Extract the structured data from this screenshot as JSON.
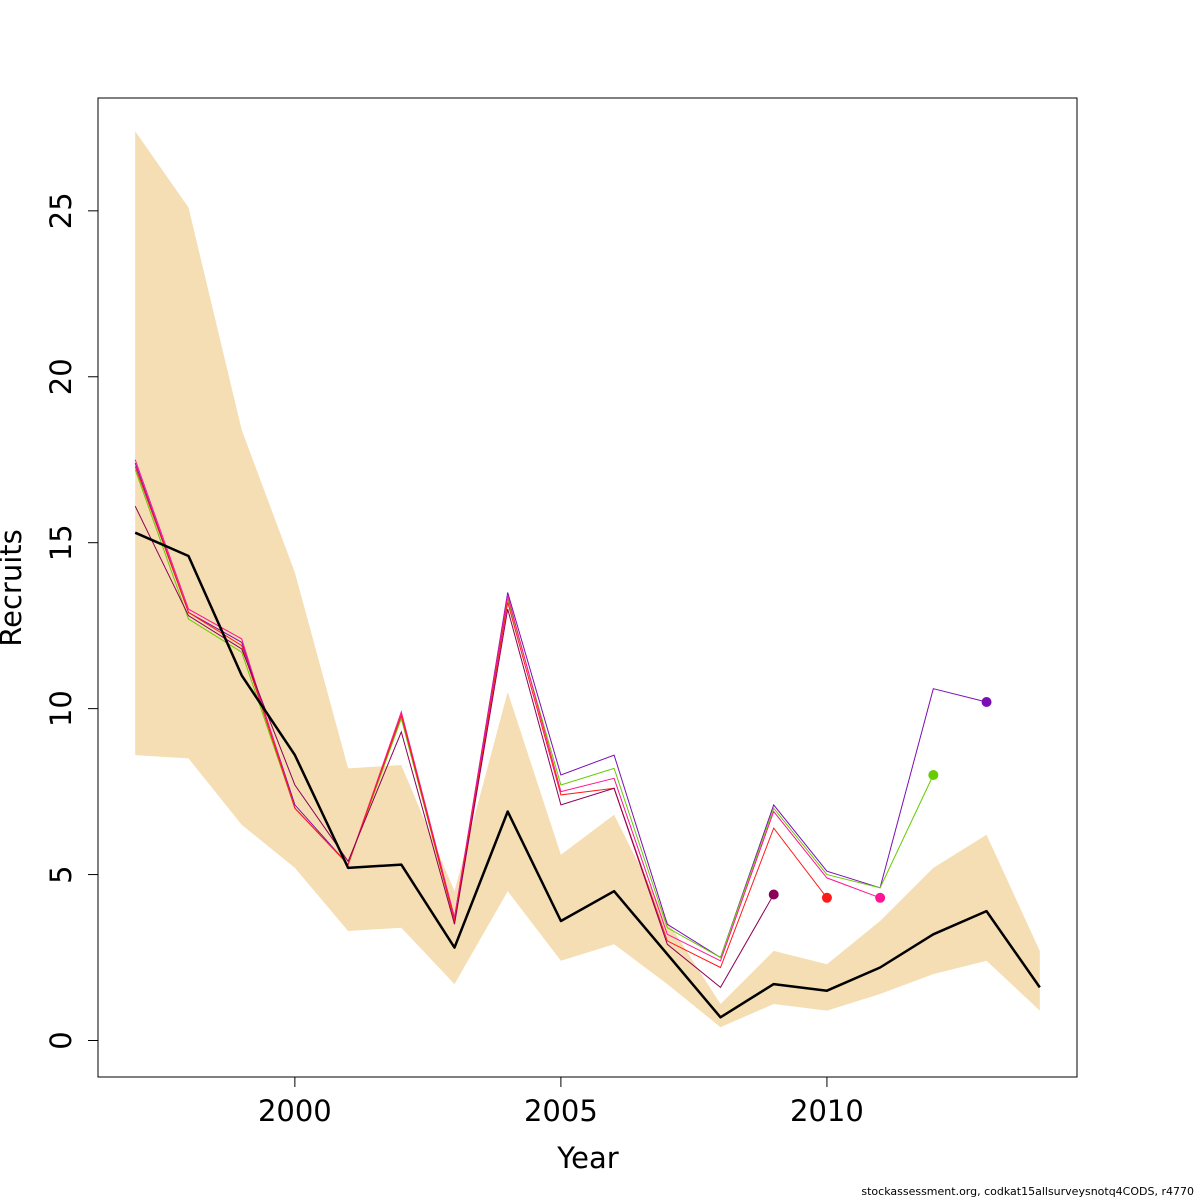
{
  "chart_data": {
    "type": "line",
    "title": "",
    "xlabel": "Year",
    "ylabel": "Recruits",
    "xlim": [
      1996.3,
      2014.7
    ],
    "ylim": [
      -1.1,
      28.4
    ],
    "x_ticks": [
      2000,
      2005,
      2010
    ],
    "y_ticks": [
      0,
      5,
      10,
      15,
      20,
      25
    ],
    "grid": false,
    "legend": "none",
    "confidence_band": {
      "color": "#F5DEB3",
      "x": [
        1997,
        1998,
        1999,
        2000,
        2001,
        2002,
        2003,
        2004,
        2005,
        2006,
        2007,
        2008,
        2009,
        2010,
        2011,
        2012,
        2013,
        2014
      ],
      "upper": [
        27.4,
        25.1,
        18.4,
        14.1,
        8.2,
        8.3,
        4.5,
        10.5,
        5.6,
        6.8,
        3.6,
        1.1,
        2.7,
        2.3,
        3.6,
        5.2,
        6.2,
        2.7
      ],
      "lower": [
        8.6,
        8.5,
        6.5,
        5.2,
        3.3,
        3.4,
        1.7,
        4.5,
        2.4,
        2.9,
        1.7,
        0.4,
        1.1,
        0.9,
        1.4,
        2.0,
        2.4,
        0.9
      ]
    },
    "main_estimate": {
      "color": "#000000",
      "x": [
        1997,
        1998,
        1999,
        2000,
        2001,
        2002,
        2003,
        2004,
        2005,
        2006,
        2007,
        2008,
        2009,
        2010,
        2011,
        2012,
        2013,
        2014
      ],
      "values": [
        15.3,
        14.6,
        11.0,
        8.6,
        5.2,
        5.3,
        2.8,
        6.9,
        3.6,
        4.5,
        2.6,
        0.7,
        1.7,
        1.5,
        2.2,
        3.2,
        3.9,
        1.6
      ]
    },
    "series": [
      {
        "color": "#7B0DB4",
        "x": [
          1997,
          1998,
          1999,
          2000,
          2001,
          2002,
          2003,
          2004,
          2005,
          2006,
          2007,
          2008,
          2009,
          2010,
          2011,
          2012,
          2013
        ],
        "values": [
          17.4,
          12.9,
          12.0,
          7.1,
          5.3,
          9.8,
          3.7,
          13.5,
          8.0,
          8.6,
          3.5,
          2.5,
          7.1,
          5.1,
          4.6,
          10.6,
          10.2
        ]
      },
      {
        "color": "#66CC00",
        "x": [
          1997,
          1998,
          1999,
          2000,
          2001,
          2002,
          2003,
          2004,
          2005,
          2006,
          2007,
          2008,
          2009,
          2010,
          2011,
          2012
        ],
        "values": [
          17.2,
          12.7,
          11.7,
          7.0,
          5.3,
          9.7,
          3.6,
          13.3,
          7.7,
          8.2,
          3.4,
          2.5,
          7.0,
          5.0,
          4.6,
          8.0
        ]
      },
      {
        "color": "#FF1493",
        "x": [
          1997,
          1998,
          1999,
          2000,
          2001,
          2002,
          2003,
          2004,
          2005,
          2006,
          2007,
          2008,
          2009,
          2010,
          2011
        ],
        "values": [
          17.5,
          13.0,
          12.1,
          7.0,
          5.3,
          9.9,
          3.7,
          13.4,
          7.5,
          7.9,
          3.2,
          2.4,
          6.9,
          4.9,
          4.3
        ]
      },
      {
        "color": "#FF1A1A",
        "x": [
          1997,
          1998,
          1999,
          2000,
          2001,
          2002,
          2003,
          2004,
          2005,
          2006,
          2007,
          2008,
          2009,
          2010
        ],
        "values": [
          17.3,
          12.9,
          11.9,
          7.0,
          5.3,
          9.8,
          3.6,
          13.2,
          7.4,
          7.6,
          3.0,
          2.2,
          6.4,
          4.3
        ]
      },
      {
        "color": "#8B0057",
        "x": [
          1997,
          1998,
          1999,
          2000,
          2001,
          2002,
          2003,
          2004,
          2005,
          2006,
          2007,
          2008,
          2009
        ],
        "values": [
          16.1,
          12.8,
          11.8,
          7.7,
          5.4,
          9.3,
          3.5,
          13.0,
          7.1,
          7.6,
          2.9,
          1.6,
          4.4
        ]
      }
    ]
  },
  "footer": {
    "text": "stockassessment.org, codkat15allsurveysnotq4CODS, r4770"
  }
}
